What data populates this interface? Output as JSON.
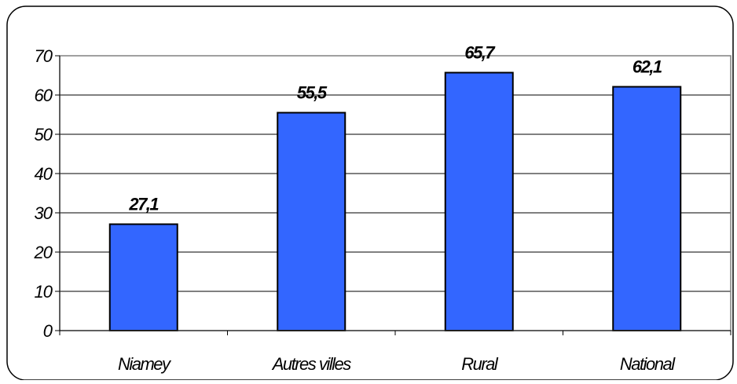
{
  "chart_data": {
    "type": "bar",
    "categories": [
      "Niamey",
      "Autres villes",
      "Rural",
      "National"
    ],
    "values": [
      27.1,
      55.5,
      65.7,
      62.1
    ],
    "value_labels": [
      "27,1",
      "55,5",
      "65,7",
      "62,1"
    ],
    "y_ticks": [
      "0",
      "10",
      "20",
      "30",
      "40",
      "50",
      "60",
      "70"
    ],
    "ylim": [
      0,
      70
    ],
    "grid": true,
    "legend": "none",
    "colors": {
      "bar_fill": "#3366ff",
      "bar_stroke": "#000000",
      "grid": "#000000",
      "plot_border": "#808080",
      "frame": "#000000"
    }
  }
}
